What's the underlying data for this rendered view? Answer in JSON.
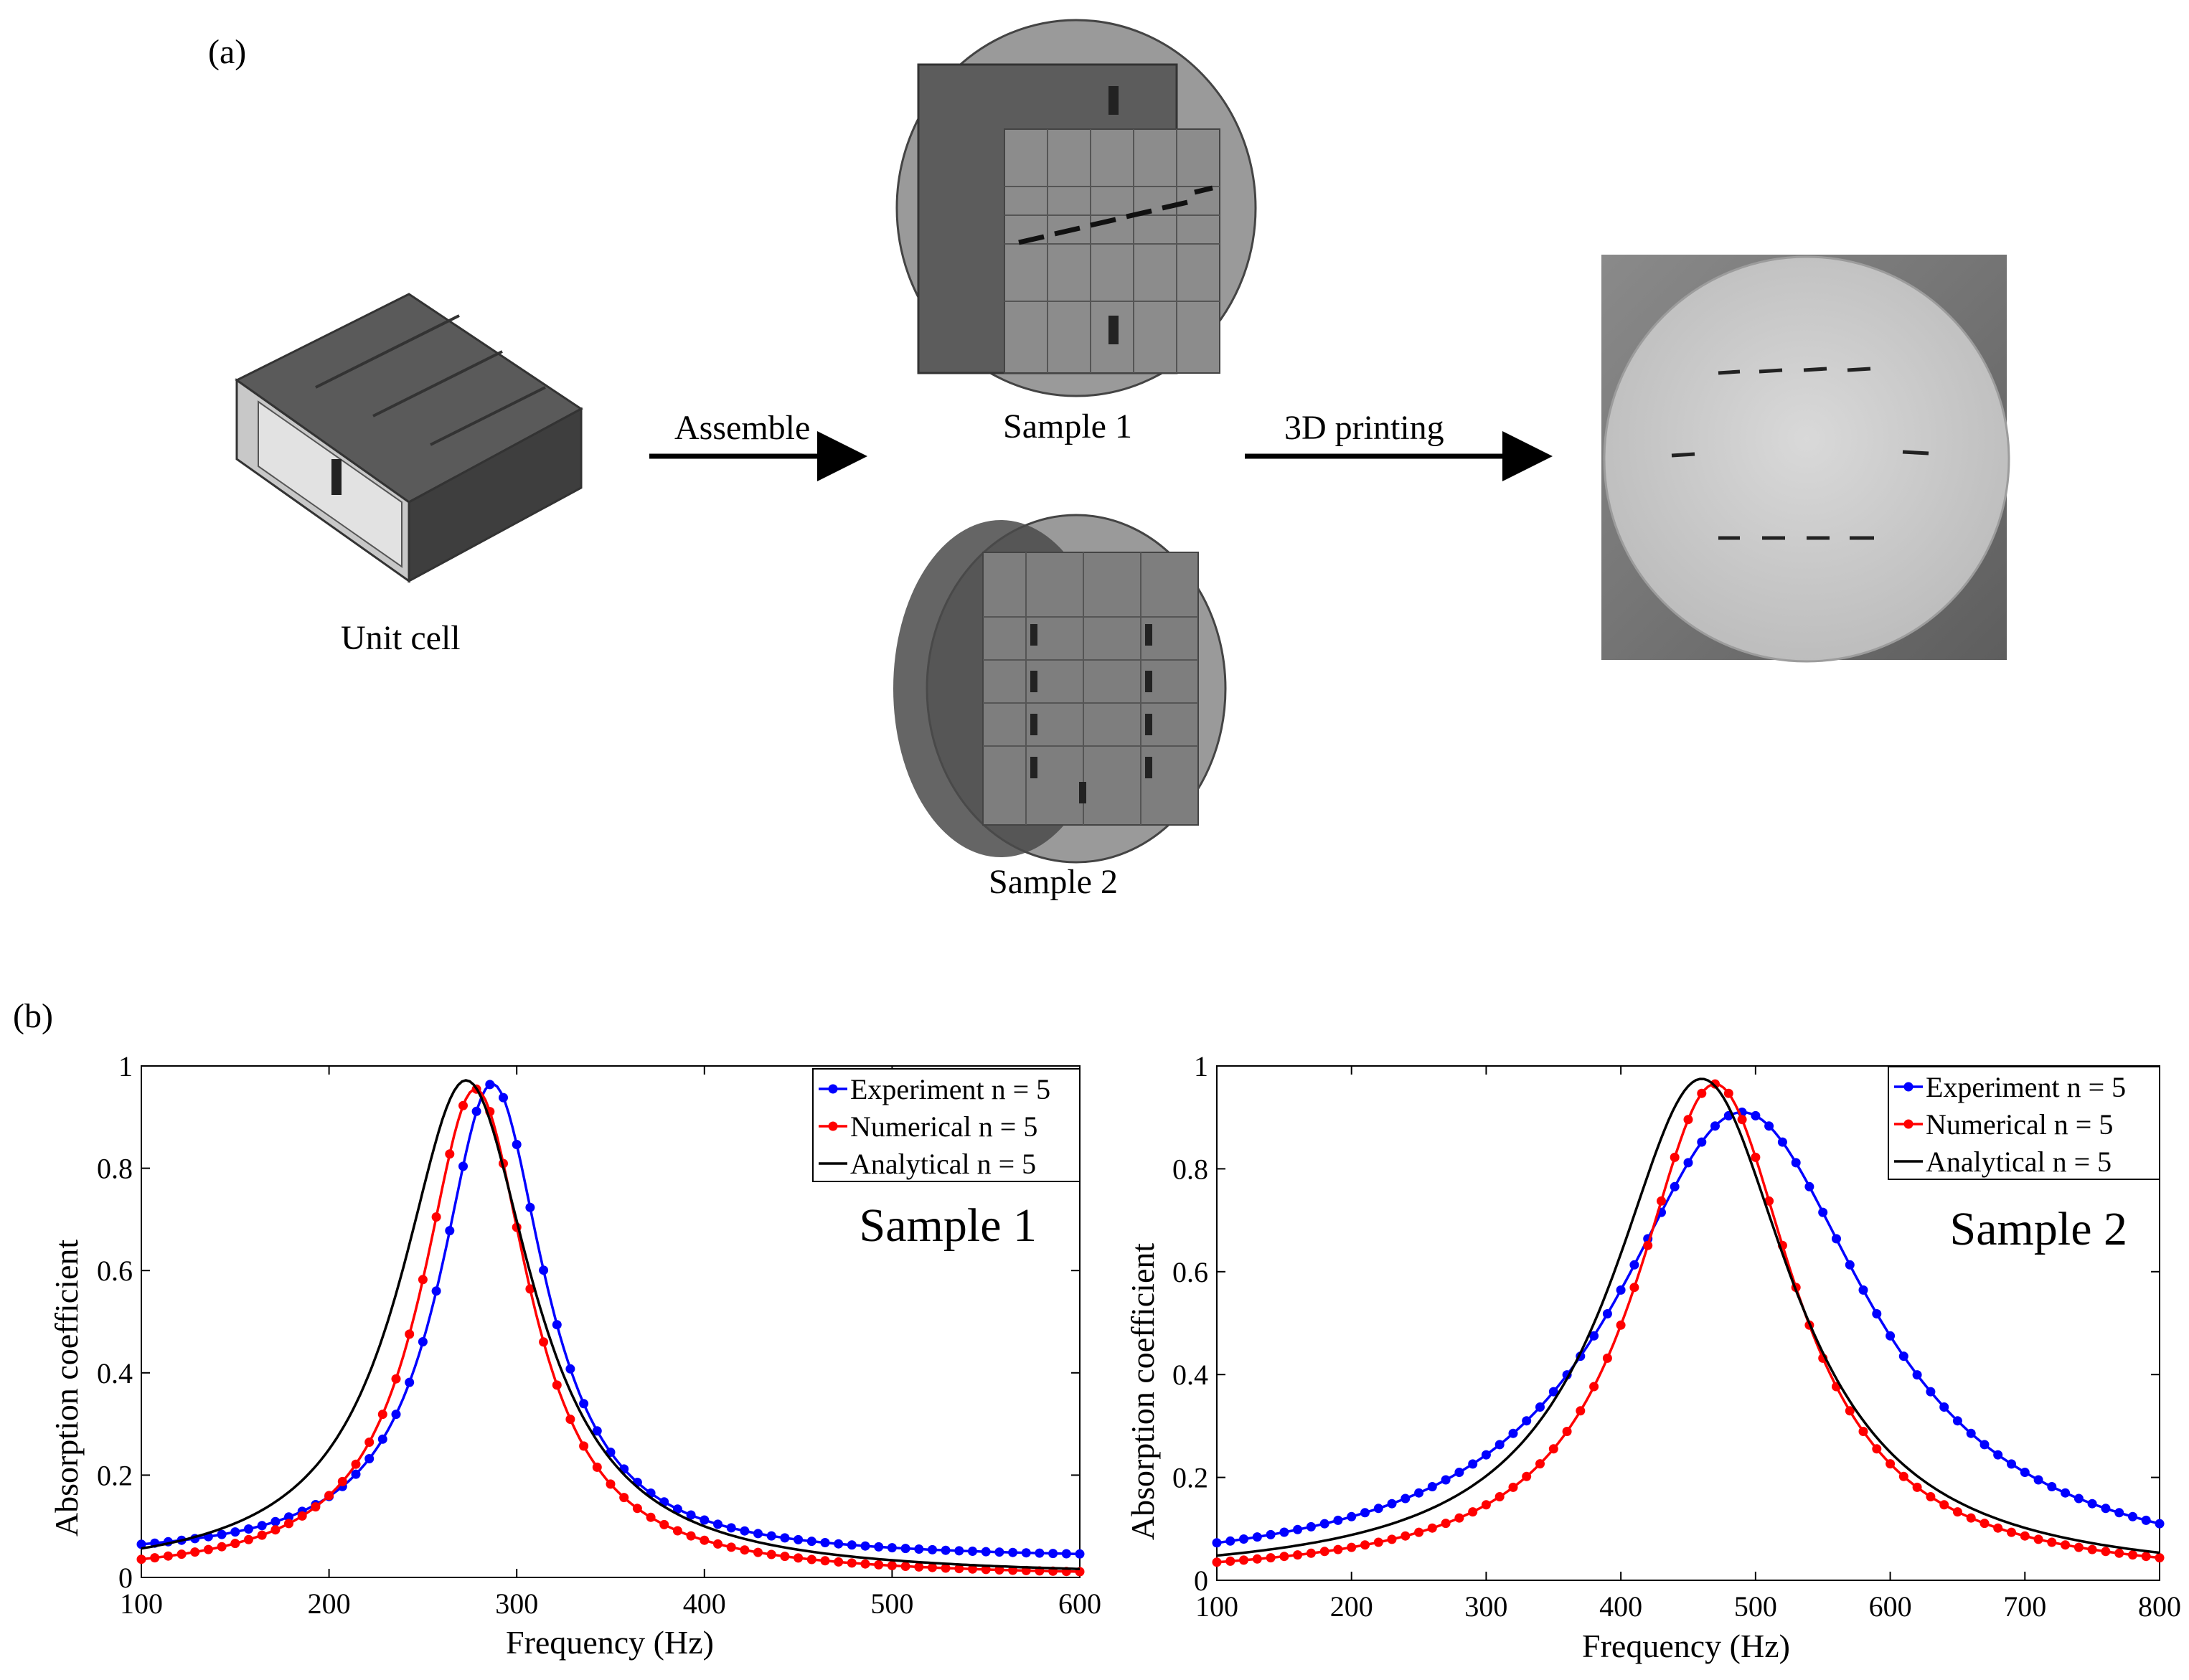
{
  "panel_a": {
    "label": "(a)",
    "unit_cell_label": "Unit cell",
    "assemble_label": "Assemble",
    "sample1_label": "Sample 1",
    "sample2_label": "Sample 2",
    "printing_label": "3D printing"
  },
  "panel_b": {
    "label": "(b)"
  },
  "colors": {
    "experiment": "#0000ff",
    "numerical": "#ff0000",
    "analytical": "#000000"
  },
  "chart_data": [
    {
      "type": "line",
      "title": "Sample 1",
      "xlabel": "Frequency (Hz)",
      "ylabel": "Absorption coefficient",
      "xlim": [
        100,
        600
      ],
      "ylim": [
        0,
        1
      ],
      "xticks": [
        100,
        200,
        300,
        400,
        500,
        600
      ],
      "yticks": [
        0,
        0.2,
        0.4,
        0.6,
        0.8,
        1
      ],
      "ytick_labels": [
        "0",
        "0.2",
        "0.4",
        "0.6",
        "0.8",
        "1"
      ],
      "legend_position": "top-right",
      "series": [
        {
          "name": "Experiment n = 5",
          "color": "#0000ff",
          "markers": true,
          "f0": 287,
          "peak": 0.965,
          "hw": 34,
          "base": 0.035
        },
        {
          "name": "Numerical n = 5",
          "color": "#ff0000",
          "markers": true,
          "f0": 278,
          "peak": 0.955,
          "hw": 35,
          "base": 0.0
        },
        {
          "name": "Analytical n = 5",
          "color": "#000000",
          "markers": false,
          "f0": 273,
          "peak": 0.972,
          "hw": 43,
          "base": 0.0
        }
      ]
    },
    {
      "type": "line",
      "title": "Sample 2",
      "xlabel": "Frequency (Hz)",
      "ylabel": "Absorption coefficient",
      "xlim": [
        100,
        800
      ],
      "ylim": [
        0,
        1
      ],
      "xticks": [
        100,
        200,
        300,
        400,
        500,
        600,
        700,
        800
      ],
      "yticks": [
        0,
        0.2,
        0.4,
        0.6,
        0.8,
        1
      ],
      "ytick_labels": [
        "0",
        "0.2",
        "0.4",
        "0.6",
        "0.8",
        "1"
      ],
      "legend_position": "top-right",
      "series": [
        {
          "name": "Experiment n = 5",
          "color": "#0000ff",
          "markers": true,
          "f0": 490,
          "peak": 0.91,
          "hw": 115,
          "base": 0.0
        },
        {
          "name": "Numerical n = 5",
          "color": "#ff0000",
          "markers": true,
          "f0": 470,
          "peak": 0.965,
          "hw": 72,
          "base": 0.0
        },
        {
          "name": "Analytical n = 5",
          "color": "#000000",
          "markers": false,
          "f0": 460,
          "peak": 0.975,
          "hw": 82,
          "base": 0.0
        }
      ]
    }
  ]
}
